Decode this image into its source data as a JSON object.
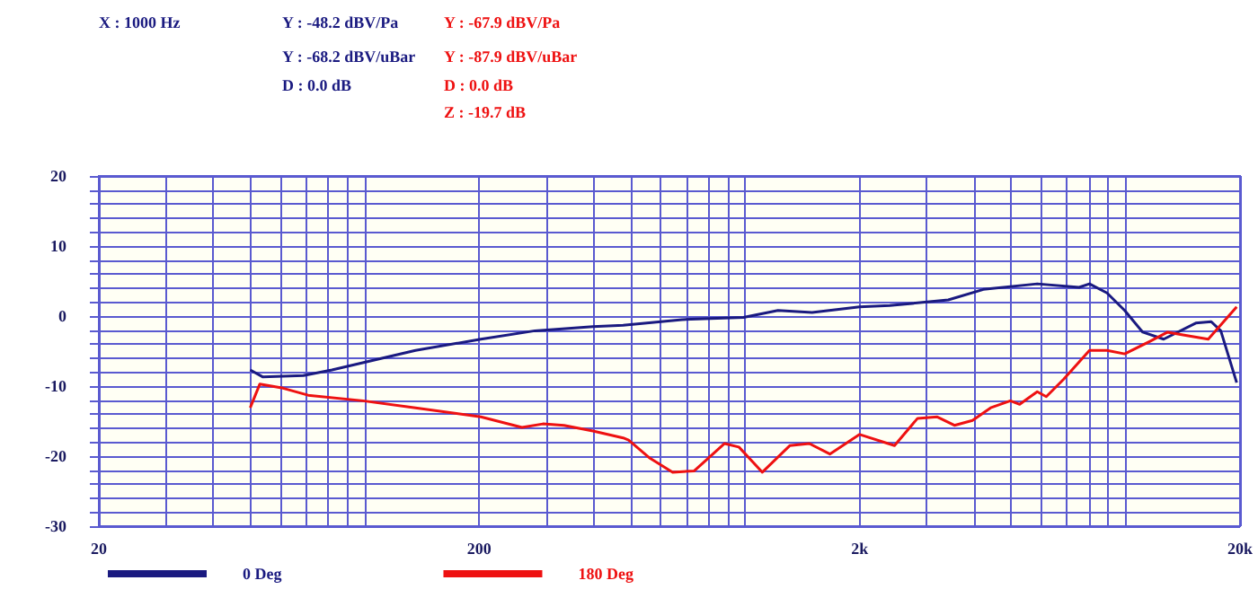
{
  "chart_data": {
    "type": "line",
    "log": "x",
    "grid": true,
    "legend": "bottom",
    "marker": "none",
    "line_style": "solid",
    "annotations": [
      "X : 1000 Hz",
      "Y : -48.2 dBV/Pa",
      "Y : -68.2 dBV/uBar",
      "D : 0.0 dB",
      "Y : -67.9 dBV/Pa",
      "Y : -87.9 dBV/uBar",
      "D : 0.0 dB",
      "Z : -19.7 dB"
    ],
    "xlim": [
      20,
      20000
    ],
    "xticks": [
      {
        "value": 20,
        "label": "20"
      },
      {
        "value": 30,
        "label": null
      },
      {
        "value": 40,
        "label": null
      },
      {
        "value": 50,
        "label": null
      },
      {
        "value": 60,
        "label": null
      },
      {
        "value": 70,
        "label": null
      },
      {
        "value": 80,
        "label": null
      },
      {
        "value": 90,
        "label": null
      },
      {
        "value": 100,
        "label": null
      },
      {
        "value": 200,
        "label": "200"
      },
      {
        "value": 300,
        "label": null
      },
      {
        "value": 400,
        "label": null
      },
      {
        "value": 500,
        "label": null
      },
      {
        "value": 600,
        "label": null
      },
      {
        "value": 700,
        "label": null
      },
      {
        "value": 800,
        "label": null
      },
      {
        "value": 900,
        "label": null
      },
      {
        "value": 1000,
        "label": null
      },
      {
        "value": 2000,
        "label": "2k"
      },
      {
        "value": 3000,
        "label": null
      },
      {
        "value": 4000,
        "label": null
      },
      {
        "value": 5000,
        "label": null
      },
      {
        "value": 6000,
        "label": null
      },
      {
        "value": 7000,
        "label": null
      },
      {
        "value": 8000,
        "label": null
      },
      {
        "value": 9000,
        "label": null
      },
      {
        "value": 10000,
        "label": null
      },
      {
        "value": 20000,
        "label": "20k"
      }
    ],
    "ylim": [
      -30,
      20
    ],
    "yticks": [
      -30,
      {
        "value": -28,
        "label": null
      },
      {
        "value": -26,
        "label": null
      },
      {
        "value": -24,
        "label": null
      },
      {
        "value": -22,
        "label": null
      },
      -20,
      {
        "value": -18,
        "label": null
      },
      {
        "value": -16,
        "label": null
      },
      {
        "value": -14,
        "label": null
      },
      {
        "value": -12,
        "label": null
      },
      -10,
      {
        "value": -8,
        "label": null
      },
      {
        "value": -6,
        "label": null
      },
      {
        "value": -4,
        "label": null
      },
      {
        "value": -2,
        "label": null
      },
      0,
      {
        "value": 2,
        "label": null
      },
      {
        "value": 4,
        "label": null
      },
      {
        "value": 6,
        "label": null
      },
      {
        "value": 8,
        "label": null
      },
      10,
      {
        "value": 12,
        "label": null
      },
      {
        "value": 14,
        "label": null
      },
      {
        "value": 16,
        "label": null
      },
      {
        "value": 18,
        "label": null
      },
      20
    ],
    "series": [
      {
        "name": "0 Deg",
        "color": "#1a1a80",
        "x": [
          50,
          54,
          69,
          82,
          136,
          202,
          280,
          398,
          478,
          683,
          990,
          1220,
          1500,
          2000,
          2400,
          3420,
          4230,
          5860,
          7550,
          8040,
          8940,
          9950,
          11100,
          12600,
          15300,
          16800,
          17800,
          19600
        ],
        "values": [
          -7.7,
          -8.7,
          -8.5,
          -7.7,
          -4.9,
          -3.3,
          -2.1,
          -1.5,
          -1.3,
          -0.5,
          -0.2,
          0.8,
          0.5,
          1.3,
          1.5,
          2.3,
          3.8,
          4.6,
          4.1,
          4.6,
          3.3,
          0.8,
          -2.3,
          -3.3,
          -1.0,
          -0.8,
          -2.1,
          -9.5
        ]
      },
      {
        "name": "180 Deg",
        "color": "#ee1111",
        "x": [
          50,
          53,
          61,
          71,
          99,
          136,
          202,
          259,
          294,
          334,
          398,
          478,
          494,
          562,
          645,
          735,
          883,
          963,
          1110,
          1310,
          1475,
          1670,
          2000,
          2470,
          2840,
          3200,
          3550,
          3960,
          4420,
          4980,
          5270,
          5860,
          6190,
          6880,
          8040,
          8940,
          9950,
          11600,
          12900,
          14500,
          16500,
          19600
        ],
        "values": [
          -13.1,
          -9.7,
          -10.3,
          -11.3,
          -12.1,
          -13.1,
          -14.4,
          -15.9,
          -15.4,
          -15.6,
          -16.4,
          -17.4,
          -17.7,
          -20.3,
          -22.3,
          -22.1,
          -18.2,
          -18.7,
          -22.3,
          -18.5,
          -18.2,
          -19.7,
          -16.9,
          -18.5,
          -14.6,
          -14.4,
          -15.6,
          -14.9,
          -13.1,
          -12.1,
          -12.6,
          -10.8,
          -11.5,
          -9.0,
          -4.9,
          -4.9,
          -5.4,
          -3.6,
          -2.3,
          -2.8,
          -3.3,
          1.3
        ]
      }
    ]
  }
}
